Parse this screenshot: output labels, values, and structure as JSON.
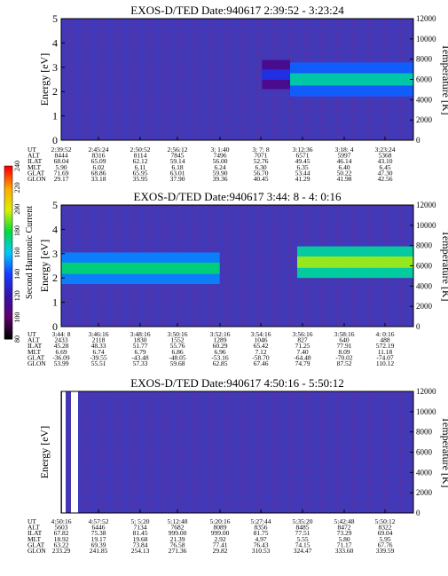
{
  "chart_data": [
    {
      "type": "heatmap",
      "title": "EXOS-D/TED  Date:940617  2:39:52 - 3:23:24",
      "ylabel": "Energy [eV]",
      "ylabel_right": "Temperature [K]",
      "ylim": [
        0,
        5
      ],
      "yticks": [
        0,
        1,
        2,
        3,
        4,
        5
      ],
      "ylim_right": [
        0,
        12000
      ],
      "yticks_right": [
        0,
        2000,
        4000,
        6000,
        8000,
        10000,
        12000
      ],
      "row_labels": [
        "UT",
        "ALT",
        "ILAT",
        "MLT",
        "GLAT",
        "GLON"
      ],
      "columns": [
        [
          "2:39:52",
          "8444",
          "68.04",
          "5.90",
          "71.69",
          "29.17"
        ],
        [
          "2:45:24",
          "8316",
          "65.09",
          "6.02",
          "68.86",
          "33.18"
        ],
        [
          "2:50:52",
          "8114",
          "62.12",
          "6.11",
          "65.95",
          "35.95"
        ],
        [
          "2:56:12",
          "7845",
          "59.14",
          "6.18",
          "63.01",
          "37.90"
        ],
        [
          "3: 1:40",
          "7496",
          "56.00",
          "6.24",
          "59.90",
          "39.36"
        ],
        [
          "3: 7: 8",
          "7071",
          "52.76",
          "6.30",
          "56.70",
          "40.45"
        ],
        [
          "3:12:36",
          "6571",
          "49.45",
          "6.35",
          "53.44",
          "41.29"
        ],
        [
          "3:18: 4",
          "5997",
          "46.14",
          "6.40",
          "50.22",
          "41.98"
        ],
        [
          "3:23:24",
          "5368",
          "43.10",
          "6.45",
          "47.30",
          "42.56"
        ]
      ],
      "band_segments": [
        {
          "t_start": 0.57,
          "t_end": 0.65,
          "e_low": 2.1,
          "e_high": 3.3,
          "level": 110
        },
        {
          "t_start": 0.65,
          "t_end": 1.0,
          "e_low": 1.8,
          "e_high": 3.2,
          "level": 145
        }
      ]
    },
    {
      "type": "heatmap",
      "title": "EXOS-D/TED  Date:940617  3:44: 8 - 4: 0:16",
      "ylabel": "Energy [eV]",
      "ylabel_right": "Temperature [K]",
      "ylim": [
        0,
        5
      ],
      "yticks": [
        0,
        1,
        2,
        3,
        4,
        5
      ],
      "ylim_right": [
        0,
        12000
      ],
      "yticks_right": [
        0,
        2000,
        4000,
        6000,
        8000,
        10000,
        12000
      ],
      "row_labels": [
        "UT",
        "ALT",
        "ILAT",
        "MLT",
        "GLAT",
        "GLON"
      ],
      "columns": [
        [
          "3:44: 8",
          "2433",
          "45.28",
          "6.69",
          "-36.09",
          "53.99"
        ],
        [
          "3:46:16",
          "2118",
          "48.33",
          "6.74",
          "-39.55",
          "55.51"
        ],
        [
          "3:48:16",
          "1830",
          "51.77",
          "6.79",
          "-43.48",
          "57.33"
        ],
        [
          "3:50:16",
          "1552",
          "55.76",
          "6.86",
          "-48.05",
          "59.68"
        ],
        [
          "3:52:16",
          "1289",
          "60.29",
          "6.96",
          "-53.16",
          "62.85"
        ],
        [
          "3:54:16",
          "1046",
          "65.42",
          "7.12",
          "-58.70",
          "67.46"
        ],
        [
          "3:56:16",
          "827",
          "71.25",
          "7.40",
          "-64.48",
          "74.79"
        ],
        [
          "3:58:16",
          "640",
          "77.91",
          "8.09",
          "-70.02",
          "87.52"
        ],
        [
          "4: 0:16",
          "488",
          "572.19",
          "11.18",
          "-74.07",
          "110.12"
        ]
      ],
      "band_segments": [
        {
          "t_start": 0.0,
          "t_end": 0.45,
          "e_low": 1.75,
          "e_high": 3.05,
          "level": 150
        },
        {
          "t_start": 0.67,
          "t_end": 1.0,
          "e_low": 2.0,
          "e_high": 3.3,
          "level": 170
        }
      ]
    },
    {
      "type": "heatmap",
      "title": "EXOS-D/TED  Date:940617  4:50:16 - 5:50:12",
      "ylabel": "Energy [eV]",
      "ylabel_right": "Temperature [K]",
      "ylim": [
        0,
        5
      ],
      "yticks": [],
      "ylim_right": [
        0,
        12000
      ],
      "yticks_right": [
        0,
        2000,
        4000,
        6000,
        8000,
        10000,
        12000
      ],
      "row_labels": [
        "UT",
        "ALT",
        "ILAT",
        "MLT",
        "GLAT",
        "GLON"
      ],
      "columns": [
        [
          "4:50:16",
          "5603",
          "67.82",
          "18.92",
          "63.22",
          "233.29"
        ],
        [
          "4:57:52",
          "6446",
          "75.38",
          "19.17",
          "69.39",
          "241.85"
        ],
        [
          "5: 5:20",
          "7134",
          "81.45",
          "19.68",
          "73.84",
          "254.13"
        ],
        [
          "5:12:48",
          "7682",
          "999.00",
          "21.39",
          "76.58",
          "271.36"
        ],
        [
          "5:20:16",
          "8089",
          "999.00",
          "2.92",
          "77.41",
          "29.82"
        ],
        [
          "5:27:44",
          "8356",
          "81.75",
          "4.97",
          "76.43",
          "310.53"
        ],
        [
          "5:35:20",
          "8485",
          "77.51",
          "5.55",
          "74.15",
          "324.47"
        ],
        [
          "5:42:48",
          "8472",
          "73.29",
          "5.80",
          "71.17",
          "333.60"
        ],
        [
          "5:50:12",
          "8322",
          "69.04",
          "5.95",
          "67.76",
          "339.59"
        ]
      ],
      "band_segments": []
    }
  ],
  "colorbar": {
    "label": "Second Harmonic Current",
    "ticks": [
      "80",
      "100",
      "120",
      "140",
      "160",
      "180",
      "200",
      "220",
      "240"
    ],
    "min": 80,
    "max": 240
  }
}
